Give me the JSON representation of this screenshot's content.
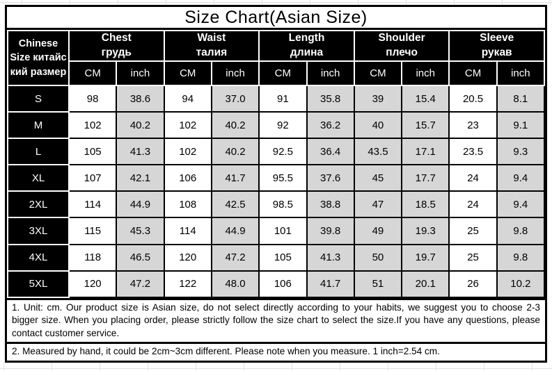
{
  "title": "Size Chart(Asian Size)",
  "size_table": {
    "corner_label_full": "Chinese Size китайский размер",
    "corner_label_lines": [
      "Chinese",
      "Size китайс",
      "кий размер"
    ],
    "column_groups": [
      {
        "en": "Chest",
        "ru": "грудь"
      },
      {
        "en": "Waist",
        "ru": "талия"
      },
      {
        "en": "Length",
        "ru": "длина"
      },
      {
        "en": "Shoulder",
        "ru": "плечо"
      },
      {
        "en": "Sleeve",
        "ru": "рукав"
      }
    ],
    "unit_headers": [
      "CM",
      "inch"
    ],
    "rows": [
      {
        "size": "S",
        "values": [
          "98",
          "38.6",
          "94",
          "37.0",
          "91",
          "35.8",
          "39",
          "15.4",
          "20.5",
          "8.1"
        ]
      },
      {
        "size": "M",
        "values": [
          "102",
          "40.2",
          "102",
          "40.2",
          "92",
          "36.2",
          "40",
          "15.7",
          "23",
          "9.1"
        ]
      },
      {
        "size": "L",
        "values": [
          "105",
          "41.3",
          "102",
          "40.2",
          "92.5",
          "36.4",
          "43.5",
          "17.1",
          "23.5",
          "9.3"
        ]
      },
      {
        "size": "XL",
        "values": [
          "107",
          "42.1",
          "106",
          "41.7",
          "95.5",
          "37.6",
          "45",
          "17.7",
          "24",
          "9.4"
        ]
      },
      {
        "size": "2XL",
        "values": [
          "114",
          "44.9",
          "108",
          "42.5",
          "98.5",
          "38.8",
          "47",
          "18.5",
          "24",
          "9.4"
        ]
      },
      {
        "size": "3XL",
        "values": [
          "115",
          "45.3",
          "114",
          "44.9",
          "101",
          "39.8",
          "49",
          "19.3",
          "25",
          "9.8"
        ]
      },
      {
        "size": "4XL",
        "values": [
          "118",
          "46.5",
          "120",
          "47.2",
          "105",
          "41.3",
          "50",
          "19.7",
          "25",
          "9.8"
        ]
      },
      {
        "size": "5XL",
        "values": [
          "120",
          "47.2",
          "122",
          "48.0",
          "106",
          "41.7",
          "51",
          "20.1",
          "26",
          "10.2"
        ]
      }
    ],
    "column_shading": [
      "white",
      "gray",
      "white",
      "gray",
      "white",
      "gray",
      "gray",
      "gray",
      "white",
      "gray"
    ]
  },
  "notes": [
    "1. Unit: cm. Our product size is Asian size, do not select directly according to your habits, we suggest you to choose 2-3 bigger size. When you placing order, please strictly follow the size chart to select the size.If you have any questions, please contact customer service.",
    "2. Measured by hand, it could be 2cm~3cm different. Please note when you measure. 1 inch=2.54 cm."
  ],
  "colors": {
    "header_bg": "#000000",
    "header_text": "#ffffff",
    "shaded_cell": "#d6d6d6",
    "border": "#000000",
    "gridline": "#e0e0e0"
  }
}
